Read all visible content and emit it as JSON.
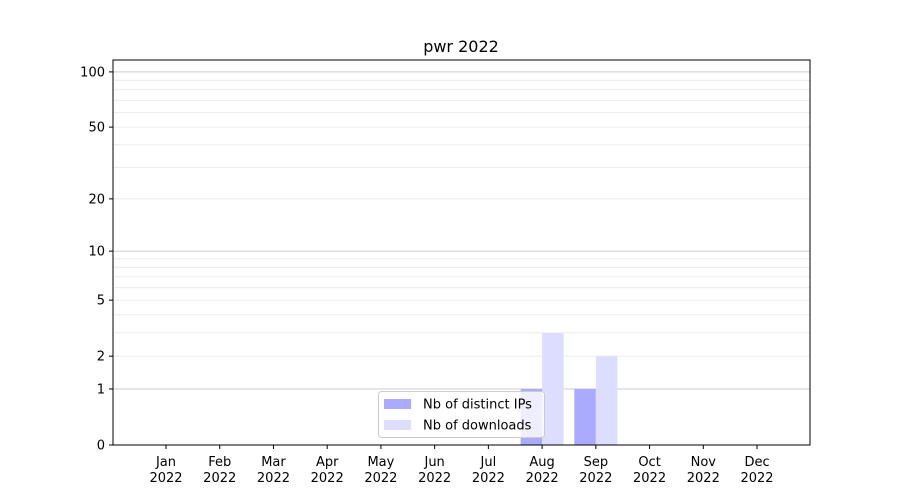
{
  "chart_data": {
    "type": "bar",
    "title": "pwr 2022",
    "xlabel": "",
    "ylabel": "",
    "yscale": "symlog",
    "ylim": [
      0,
      116
    ],
    "yticks": [
      0,
      1,
      2,
      5,
      10,
      20,
      50,
      100
    ],
    "grid": true,
    "legend_position": "lower center",
    "categories": [
      "Jan\n2022",
      "Feb\n2022",
      "Mar\n2022",
      "Apr\n2022",
      "May\n2022",
      "Jun\n2022",
      "Jul\n2022",
      "Aug\n2022",
      "Sep\n2022",
      "Oct\n2022",
      "Nov\n2022",
      "Dec\n2022"
    ],
    "series": [
      {
        "name": "Nb of distinct IPs",
        "color": "#aaaaff",
        "values": [
          0,
          0,
          0,
          0,
          0,
          0,
          0,
          1,
          1,
          0,
          0,
          0
        ]
      },
      {
        "name": "Nb of downloads",
        "color": "#ddddff",
        "values": [
          0,
          0,
          0,
          0,
          0,
          0,
          0,
          3,
          2,
          0,
          0,
          0
        ]
      }
    ]
  }
}
